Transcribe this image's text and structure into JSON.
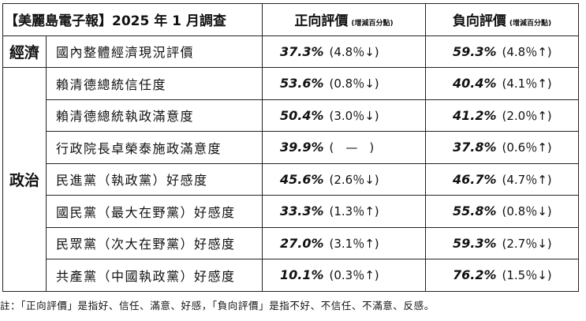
{
  "header": {
    "title": "【美麗島電子報】2025 年 1 月調查",
    "positive": "正向評價",
    "positive_sub": "(增減百分點)",
    "negative": "負向評價",
    "negative_sub": "(增減百分點)"
  },
  "categories": {
    "economy": "經濟",
    "politics": "政治"
  },
  "rows": [
    {
      "item": "國內整體經濟現況評價",
      "pos": "37.3%",
      "pos_chg": "(4.8％↓)",
      "neg": "59.3%",
      "neg_chg": "(4.8％↑)"
    },
    {
      "item": "賴清德總統信任度",
      "pos": "53.6%",
      "pos_chg": "(0.8％↓)",
      "neg": "40.4%",
      "neg_chg": "(4.1％↑)"
    },
    {
      "item": "賴清德總統執政滿意度",
      "pos": "50.4%",
      "pos_chg": "(3.0％↓)",
      "neg": "41.2%",
      "neg_chg": "(2.0％↑)"
    },
    {
      "item": "行政院長卓榮泰施政滿意度",
      "pos": "39.9%",
      "pos_chg": "(　—　)",
      "neg": "37.8%",
      "neg_chg": "(0.6％↑)"
    },
    {
      "item": "民進黨（執政黨）好感度",
      "pos": "45.6%",
      "pos_chg": "(2.6％↓)",
      "neg": "46.7%",
      "neg_chg": "(4.7％↑)"
    },
    {
      "item": "國民黨（最大在野黨）好感度",
      "pos": "33.3%",
      "pos_chg": "(1.3％↑)",
      "neg": "55.8%",
      "neg_chg": "(0.8％↓)"
    },
    {
      "item": "民眾黨（次大在野黨）好感度",
      "pos": "27.0%",
      "pos_chg": "(3.1％↑)",
      "neg": "59.3%",
      "neg_chg": "(2.7％↓)"
    },
    {
      "item": "共產黨（中國執政黨）好感度",
      "pos": "10.1%",
      "pos_chg": "(0.3％↑)",
      "neg": "76.2%",
      "neg_chg": "(1.5％↓)"
    }
  ],
  "note": "註：「正向評價」是指好、信任、滿意、好感，「負向評價」是指不好、不信任、不滿意、反感。"
}
